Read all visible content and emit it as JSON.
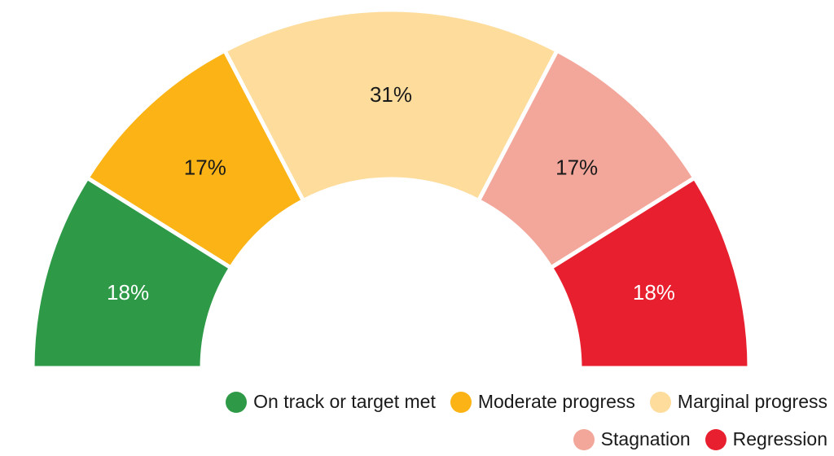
{
  "chart_data": {
    "type": "pie",
    "variant": "half-donut",
    "categories": [
      "On track or target met",
      "Moderate progress",
      "Marginal progress",
      "Stagnation",
      "Regression"
    ],
    "values": [
      18,
      17,
      31,
      17,
      18
    ],
    "labels": [
      "18%",
      "17%",
      "31%",
      "17%",
      "18%"
    ],
    "colors": [
      "#2e9a48",
      "#fbb315",
      "#fddc9c",
      "#f3a69a",
      "#e81f2e"
    ],
    "label_colors": [
      "#ffffff",
      "#1a1a1a",
      "#1a1a1a",
      "#1a1a1a",
      "#ffffff"
    ],
    "legend_position": "bottom-right"
  },
  "legend": {
    "row1": [
      {
        "label": "On track or target met",
        "color": "#2e9a48"
      },
      {
        "label": "Moderate progress",
        "color": "#fbb315"
      },
      {
        "label": "Marginal progress",
        "color": "#fddc9c"
      }
    ],
    "row2": [
      {
        "label": "Stagnation",
        "color": "#f3a69a"
      },
      {
        "label": "Regression",
        "color": "#e81f2e"
      }
    ]
  }
}
